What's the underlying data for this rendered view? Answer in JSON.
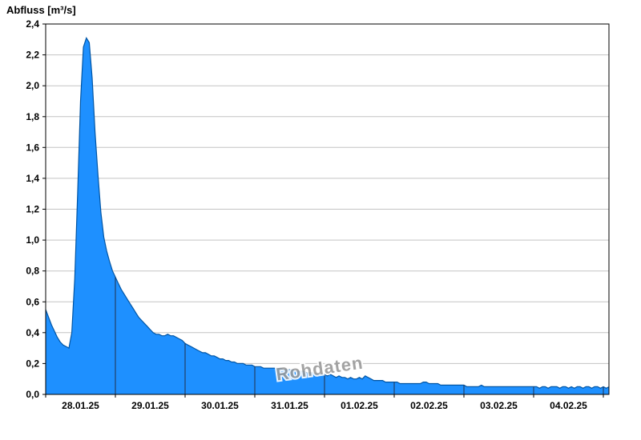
{
  "header": {
    "title": "Abfluss [m³/s]"
  },
  "chart_data": {
    "type": "area",
    "title": "Abfluss [m³/s]",
    "ylabel": "Abfluss [m³/s]",
    "xlabel": "",
    "watermark": "Rohdaten",
    "legend": "none",
    "grid": "horizontal",
    "ylim": [
      0,
      2.4
    ],
    "x_start": "28.01.25 00:00",
    "x_step_hours": 1,
    "x_tick_labels": [
      "28.01.25",
      "29.01.25",
      "30.01.25",
      "31.01.25",
      "01.02.25",
      "02.02.25",
      "03.02.25",
      "04.02.25"
    ],
    "y_tick_labels": [
      "0,0",
      "0,2",
      "0,4",
      "0,6",
      "0,8",
      "1,0",
      "1,2",
      "1,4",
      "1,6",
      "1,8",
      "2,0",
      "2,2",
      "2,4"
    ],
    "values": [
      0.55,
      0.5,
      0.45,
      0.41,
      0.37,
      0.34,
      0.32,
      0.31,
      0.3,
      0.4,
      0.75,
      1.3,
      1.9,
      2.25,
      2.31,
      2.28,
      2.05,
      1.7,
      1.42,
      1.18,
      1.02,
      0.93,
      0.86,
      0.8,
      0.76,
      0.72,
      0.68,
      0.65,
      0.62,
      0.59,
      0.56,
      0.53,
      0.5,
      0.48,
      0.46,
      0.44,
      0.42,
      0.4,
      0.39,
      0.39,
      0.38,
      0.38,
      0.39,
      0.38,
      0.38,
      0.37,
      0.36,
      0.35,
      0.33,
      0.32,
      0.31,
      0.3,
      0.29,
      0.28,
      0.27,
      0.27,
      0.26,
      0.25,
      0.25,
      0.24,
      0.23,
      0.23,
      0.22,
      0.22,
      0.21,
      0.21,
      0.2,
      0.2,
      0.2,
      0.19,
      0.19,
      0.19,
      0.18,
      0.18,
      0.18,
      0.17,
      0.17,
      0.17,
      0.17,
      0.17,
      0.17,
      0.17,
      0.16,
      0.16,
      0.16,
      0.16,
      0.15,
      0.15,
      0.15,
      0.15,
      0.14,
      0.14,
      0.14,
      0.13,
      0.13,
      0.13,
      0.13,
      0.12,
      0.13,
      0.12,
      0.11,
      0.12,
      0.11,
      0.11,
      0.1,
      0.11,
      0.1,
      0.1,
      0.11,
      0.1,
      0.12,
      0.11,
      0.1,
      0.09,
      0.09,
      0.09,
      0.09,
      0.08,
      0.08,
      0.08,
      0.08,
      0.08,
      0.07,
      0.07,
      0.07,
      0.07,
      0.07,
      0.07,
      0.07,
      0.07,
      0.08,
      0.08,
      0.07,
      0.07,
      0.07,
      0.07,
      0.06,
      0.06,
      0.06,
      0.06,
      0.06,
      0.06,
      0.06,
      0.06,
      0.06,
      0.05,
      0.05,
      0.05,
      0.05,
      0.05,
      0.06,
      0.05,
      0.05,
      0.05,
      0.05,
      0.05,
      0.05,
      0.05,
      0.05,
      0.05,
      0.05,
      0.05,
      0.05,
      0.05,
      0.05,
      0.05,
      0.05,
      0.05,
      0.05,
      0.05,
      0.04,
      0.05,
      0.05,
      0.04,
      0.05,
      0.05,
      0.05,
      0.04,
      0.05,
      0.05,
      0.04,
      0.05,
      0.04,
      0.05,
      0.05,
      0.04,
      0.05,
      0.05,
      0.04,
      0.05,
      0.05,
      0.04,
      0.05,
      0.04,
      0.05
    ],
    "peak_value": 2.31,
    "colors": {
      "area_fill": "#1E90FF",
      "area_stroke": "#0055A5",
      "day_separator": "#22304a",
      "grid_line": "#c3c3c3",
      "plot_border": "#000000",
      "tick_text": "#000000",
      "watermark_text": "#9a9a9a",
      "background": "#ffffff"
    }
  }
}
